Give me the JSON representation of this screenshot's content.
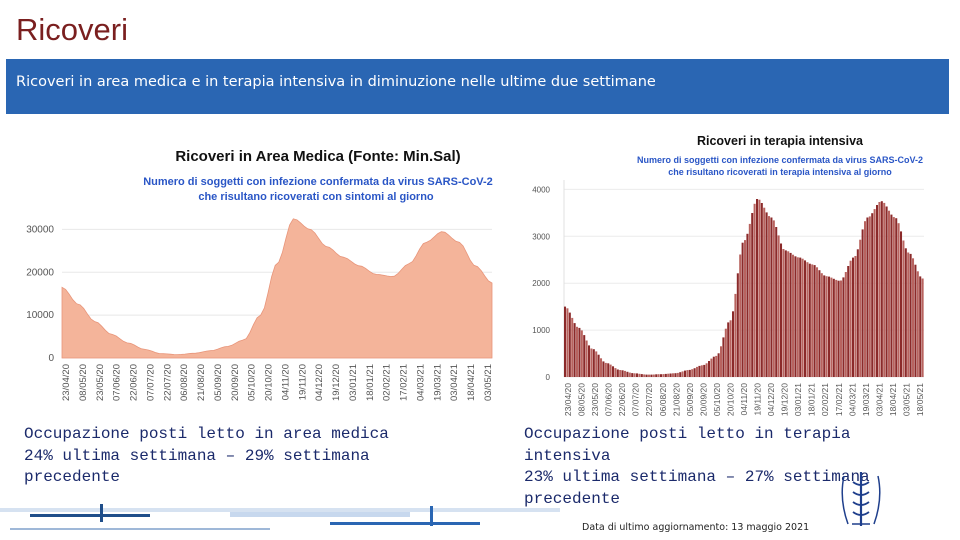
{
  "slide": {
    "title": "Ricoveri",
    "banner": "Ricoveri in area medica e in terapia intensiva in diminuzione nelle ultime due settimane",
    "footnote": "Data di ultimo aggiornamento: 13 maggio 2021"
  },
  "occupancy": {
    "medical": [
      "Occupazione posti letto in area medica",
      "24% ultima settimana – 29% settimana",
      "precedente"
    ],
    "icu": [
      "Occupazione posti letto in terapia",
      "intensiva",
      "23% ultima settimana – 27% settimana",
      "precedente"
    ]
  },
  "colors": {
    "title": "#7a1f1f",
    "banner": "#2a66b3",
    "medical_fill": "#f4b49a",
    "icu_bar": "#8b2a2a",
    "subtitle": "#2a56c6"
  },
  "chart_data": [
    {
      "type": "area",
      "title": "Ricoveri in Area Medica (Fonte: Min.Sal)",
      "subtitle": [
        "Numero di soggetti con infezione confermata da virus SARS-CoV-2",
        "che risultano ricoverati con sintomi al giorno"
      ],
      "ylim": [
        0,
        35000
      ],
      "yticks": [
        0,
        10000,
        20000,
        30000
      ],
      "ytick_labels": [
        "0",
        "10000",
        "20000",
        "30000"
      ],
      "x_labels": [
        "23/04/20",
        "08/05/20",
        "23/05/20",
        "07/06/20",
        "22/06/20",
        "07/07/20",
        "22/07/20",
        "06/08/20",
        "21/08/20",
        "05/09/20",
        "20/09/20",
        "05/10/20",
        "20/10/20",
        "04/11/20",
        "19/11/20",
        "04/12/20",
        "19/12/20",
        "03/01/21",
        "18/01/21",
        "02/02/21",
        "17/02/21",
        "04/03/21",
        "19/03/21",
        "03/04/21",
        "18/04/21",
        "03/05/21"
      ],
      "dates_sampled": [
        "23/04/20",
        "08/05/20",
        "23/05/20",
        "07/06/20",
        "22/06/20",
        "07/07/20",
        "22/07/20",
        "06/08/20",
        "21/08/20",
        "05/09/20",
        "20/09/20",
        "05/10/20",
        "20/10/20",
        "04/11/20",
        "19/11/20",
        "04/12/20",
        "19/12/20",
        "03/01/21",
        "18/01/21",
        "02/02/21",
        "17/02/21",
        "04/03/21",
        "19/03/21",
        "03/04/21",
        "18/04/21",
        "03/05/21",
        "13/05/21"
      ],
      "values": [
        16500,
        12500,
        8500,
        5500,
        3500,
        2000,
        1000,
        800,
        1100,
        1700,
        2700,
        4200,
        10000,
        22000,
        32500,
        30000,
        26000,
        23500,
        21500,
        19500,
        19000,
        22000,
        27000,
        29500,
        27000,
        21500,
        17500
      ]
    },
    {
      "type": "bar",
      "title": "Ricoveri in terapia intensiva",
      "subtitle": [
        "Numero di soggetti con infezione confermata da virus SARS-CoV-2",
        "che risultano ricoverati in terapia intensiva al giorno"
      ],
      "ylim": [
        0,
        4200
      ],
      "yticks": [
        0,
        1000,
        2000,
        3000,
        4000
      ],
      "ytick_labels": [
        "0",
        "1000",
        "2000",
        "3000",
        "4000"
      ],
      "x_labels": [
        "23/04/20",
        "08/05/20",
        "23/05/20",
        "07/06/20",
        "22/06/20",
        "07/07/20",
        "22/07/20",
        "06/08/20",
        "21/08/20",
        "05/09/20",
        "20/09/20",
        "05/10/20",
        "20/10/20",
        "04/11/20",
        "19/11/20",
        "04/12/20",
        "19/12/20",
        "03/01/21",
        "18/01/21",
        "02/02/21",
        "17/02/21",
        "04/03/21",
        "19/03/21",
        "03/04/21",
        "18/04/21",
        "03/05/21",
        "18/05/21"
      ],
      "dates_sampled": [
        "23/04/20",
        "08/05/20",
        "23/05/20",
        "07/06/20",
        "22/06/20",
        "07/07/20",
        "22/07/20",
        "06/08/20",
        "21/08/20",
        "05/09/20",
        "20/09/20",
        "05/10/20",
        "20/10/20",
        "04/11/20",
        "19/11/20",
        "04/12/20",
        "19/12/20",
        "03/01/21",
        "18/01/21",
        "02/02/21",
        "17/02/21",
        "04/03/21",
        "19/03/21",
        "03/04/21",
        "18/04/21",
        "03/05/21",
        "13/05/21"
      ],
      "values": [
        1500,
        1050,
        600,
        300,
        150,
        80,
        50,
        60,
        80,
        150,
        250,
        450,
        1200,
        2900,
        3800,
        3400,
        2700,
        2550,
        2400,
        2150,
        2050,
        2550,
        3400,
        3750,
        3400,
        2650,
        2100
      ]
    }
  ]
}
